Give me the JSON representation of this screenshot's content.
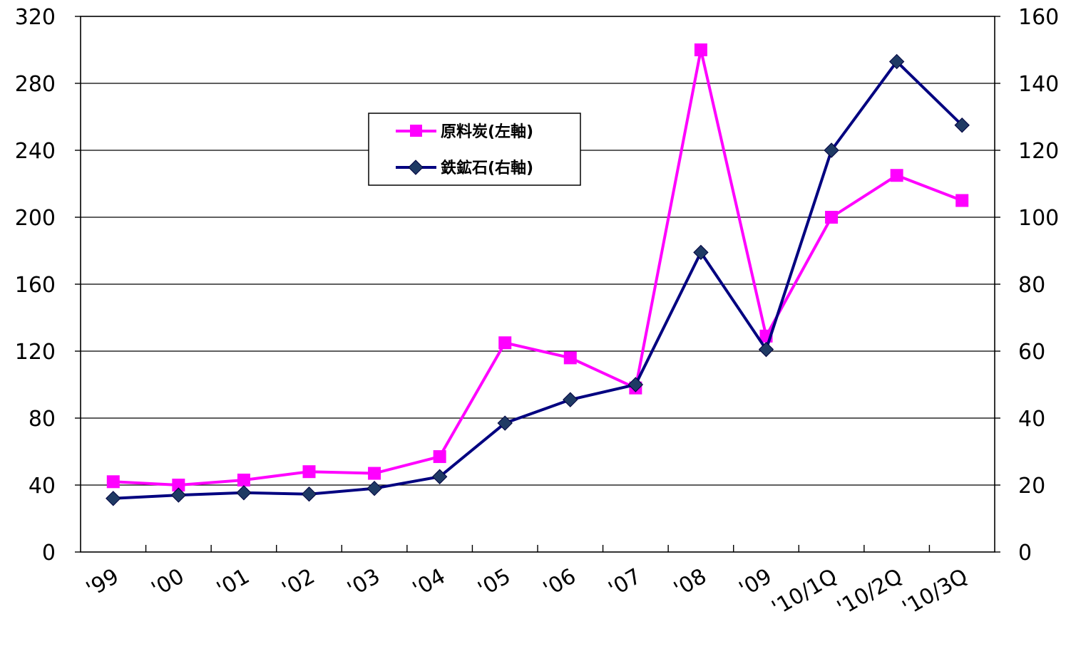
{
  "chart_data": {
    "type": "line",
    "categories": [
      "'99",
      "'00",
      "'01",
      "'02",
      "'03",
      "'04",
      "'05",
      "'06",
      "'07",
      "'08",
      "'09",
      "'10/1Q",
      "'10/2Q",
      "'10/3Q"
    ],
    "series": [
      {
        "name": "原料炭(左軸)",
        "axis": "left",
        "color": "#ff00ff",
        "marker": "square",
        "values": [
          42,
          40,
          43,
          48,
          47,
          57,
          125,
          116,
          98,
          300,
          129,
          200,
          225,
          210
        ]
      },
      {
        "name": "鉄鉱石(右軸)",
        "axis": "right",
        "color": "#000080",
        "marker": "diamond",
        "values": [
          16,
          17,
          17.7,
          17.3,
          19,
          22.5,
          38.5,
          45.5,
          50,
          89.5,
          60.5,
          120,
          146.5,
          127.5
        ]
      }
    ],
    "y_left": {
      "range": [
        0,
        320
      ],
      "ticks": [
        "0",
        "40",
        "80",
        "120",
        "160",
        "200",
        "240",
        "280",
        "320"
      ]
    },
    "y_right": {
      "range": [
        0,
        160
      ],
      "ticks": [
        "0",
        "20",
        "40",
        "60",
        "80",
        "100",
        "120",
        "140",
        "160"
      ]
    },
    "grid": "horizontal",
    "legend_position": "top-center"
  }
}
